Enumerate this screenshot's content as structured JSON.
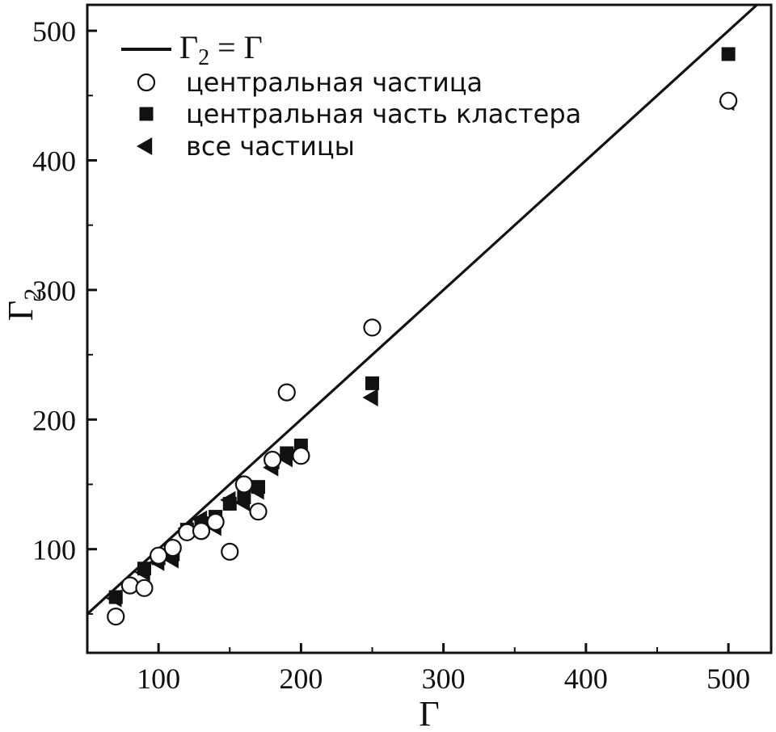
{
  "chart_data": {
    "type": "scatter",
    "title": "",
    "xlabel": "Γ",
    "ylabel_main": "Γ",
    "ylabel_sub": "2",
    "xlim": [
      50,
      530
    ],
    "ylim": [
      20,
      520
    ],
    "xticks": [
      100,
      200,
      300,
      400,
      500
    ],
    "yticks": [
      100,
      200,
      300,
      400,
      500
    ],
    "grid": false,
    "legend_position": "top-left",
    "line": {
      "label_main": "Γ",
      "label_sub": "2",
      "label_rest": " = Γ",
      "points": [
        [
          50,
          50
        ],
        [
          530,
          530
        ]
      ],
      "color": "#111111"
    },
    "series": [
      {
        "name": "центральная частица",
        "marker": "circle-open",
        "points": [
          [
            70,
            48
          ],
          [
            80,
            72
          ],
          [
            90,
            70
          ],
          [
            100,
            95
          ],
          [
            110,
            101
          ],
          [
            120,
            113
          ],
          [
            130,
            114
          ],
          [
            140,
            121
          ],
          [
            150,
            98
          ],
          [
            160,
            150
          ],
          [
            170,
            129
          ],
          [
            180,
            169
          ],
          [
            190,
            221
          ],
          [
            200,
            172
          ],
          [
            250,
            271
          ],
          [
            500,
            446
          ]
        ]
      },
      {
        "name": "центральная часть кластера",
        "marker": "square-filled",
        "points": [
          [
            70,
            63
          ],
          [
            90,
            85
          ],
          [
            100,
            93
          ],
          [
            110,
            96
          ],
          [
            120,
            115
          ],
          [
            130,
            120
          ],
          [
            140,
            125
          ],
          [
            150,
            135
          ],
          [
            160,
            140
          ],
          [
            170,
            148
          ],
          [
            180,
            167
          ],
          [
            190,
            174
          ],
          [
            200,
            180
          ],
          [
            250,
            228
          ],
          [
            500,
            482
          ]
        ]
      },
      {
        "name": "все частицы",
        "marker": "triangle-left",
        "points": [
          [
            70,
            62
          ],
          [
            90,
            82
          ],
          [
            100,
            90
          ],
          [
            110,
            92
          ],
          [
            120,
            116
          ],
          [
            130,
            123
          ],
          [
            140,
            117
          ],
          [
            150,
            138
          ],
          [
            160,
            136
          ],
          [
            170,
            145
          ],
          [
            180,
            163
          ],
          [
            190,
            170
          ],
          [
            200,
            176
          ],
          [
            250,
            217
          ],
          [
            500,
            445
          ]
        ]
      }
    ]
  }
}
